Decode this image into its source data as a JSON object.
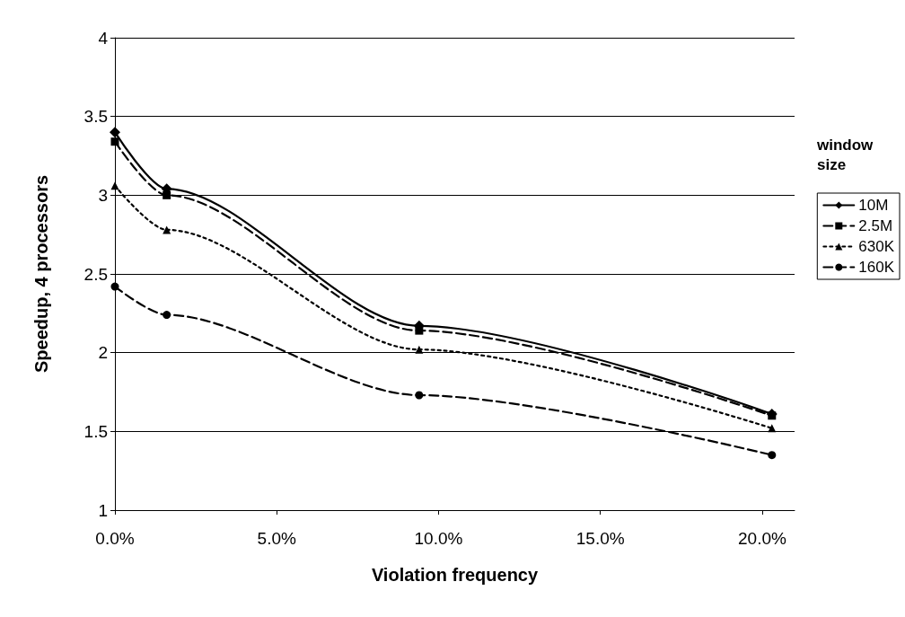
{
  "chart_data": {
    "type": "line",
    "xlabel": "Violation frequency",
    "ylabel": "Speedup, 4 processors",
    "legend_title": "window size",
    "x": [
      0,
      1.6,
      9.4,
      20.3
    ],
    "series": [
      {
        "name": "10M",
        "color": "#000000",
        "values": [
          3.4,
          3.04,
          2.17,
          1.61
        ],
        "marker": "diamond",
        "line_style": "solid"
      },
      {
        "name": "2.5M",
        "color": "#000000",
        "values": [
          3.34,
          3.0,
          2.14,
          1.6
        ],
        "marker": "square",
        "line_style": "dashed"
      },
      {
        "name": "630K",
        "color": "#000000",
        "values": [
          3.06,
          2.78,
          2.02,
          1.52
        ],
        "marker": "triangle",
        "line_style": "dotted"
      },
      {
        "name": "160K",
        "color": "#000000",
        "values": [
          2.42,
          2.24,
          1.73,
          1.35
        ],
        "marker": "circle",
        "line_style": "dashed"
      }
    ],
    "xlim": [
      0,
      21
    ],
    "xticks": [
      {
        "value": 0,
        "label": "0.0%"
      },
      {
        "value": 5,
        "label": "5.0%"
      },
      {
        "value": 10,
        "label": "10.0%"
      },
      {
        "value": 15,
        "label": "15.0%"
      },
      {
        "value": 20,
        "label": "20.0%"
      }
    ],
    "ylim": [
      1,
      4
    ],
    "yticks": [
      1,
      1.5,
      2,
      2.5,
      3,
      3.5,
      4
    ],
    "grid": "y",
    "legend": "right"
  }
}
